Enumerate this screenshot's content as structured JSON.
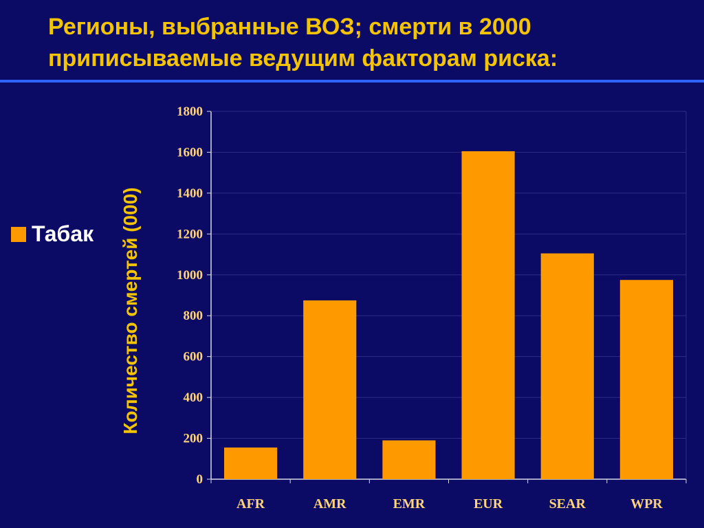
{
  "slide": {
    "title_line1": "Регионы, выбранные ВОЗ; смерти в 2000",
    "title_line2": "приписываемые ведущим факторам риска:"
  },
  "colors": {
    "background": "#0b0b66",
    "title": "#f5c400",
    "rule": "#2f63ff",
    "bar": "#ff9900",
    "axis_text": "#ffd37a",
    "grid": "#2c2c86"
  },
  "chart_data": {
    "type": "bar",
    "categories": [
      "AFR",
      "AMR",
      "EMR",
      "EUR",
      "SEAR",
      "WPR"
    ],
    "series": [
      {
        "name": "Табак",
        "values": [
          155,
          875,
          190,
          1605,
          1105,
          975
        ]
      }
    ],
    "ylabel": "Количество смертей (000)",
    "xlabel": "",
    "ylim": [
      0,
      1800
    ],
    "yticks": [
      0,
      200,
      400,
      600,
      800,
      1000,
      1200,
      1400,
      1600,
      1800
    ],
    "grid": true,
    "legend_position": "left"
  }
}
